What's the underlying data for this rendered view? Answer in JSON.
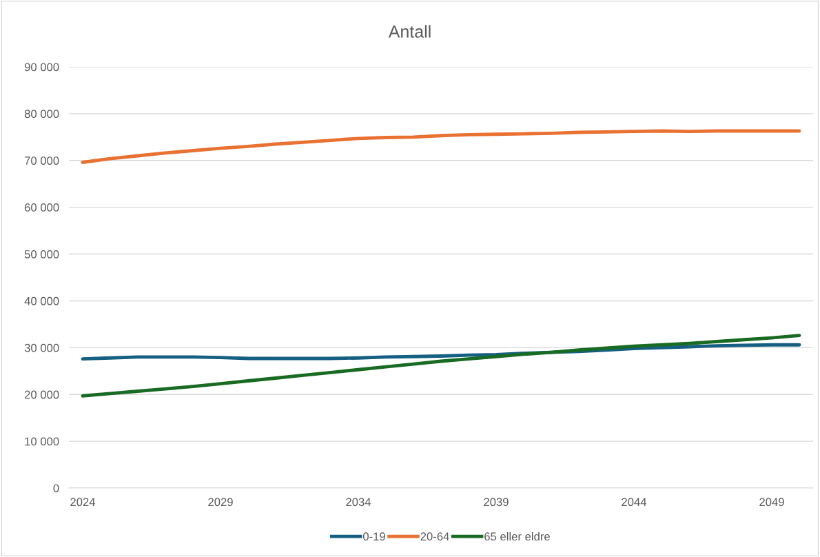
{
  "chart_data": {
    "type": "line",
    "title": "Antall",
    "categories": [
      "2024",
      null,
      null,
      null,
      null,
      "2029",
      null,
      null,
      null,
      null,
      "2034",
      null,
      null,
      null,
      null,
      "2039",
      null,
      null,
      null,
      null,
      "2044",
      null,
      null,
      null,
      null,
      "2049",
      null
    ],
    "series": [
      {
        "name": "0-19",
        "color": "#156082",
        "values": [
          27600,
          27800,
          28000,
          28000,
          28000,
          27900,
          27700,
          27700,
          27700,
          27700,
          27800,
          28000,
          28100,
          28200,
          28400,
          28500,
          28800,
          29000,
          29200,
          29500,
          29800,
          30000,
          30200,
          30400,
          30500,
          30600,
          30600
        ]
      },
      {
        "name": "20-64",
        "color": "#e97132",
        "values": [
          69600,
          70400,
          71000,
          71600,
          72100,
          72600,
          73000,
          73500,
          73900,
          74300,
          74700,
          74900,
          75000,
          75300,
          75500,
          75600,
          75700,
          75800,
          76000,
          76100,
          76200,
          76300,
          76200,
          76300,
          76300,
          76300,
          76300
        ]
      },
      {
        "name": "65 eller eldre",
        "color": "#196b24",
        "values": [
          19700,
          20200,
          20700,
          21200,
          21700,
          22300,
          22900,
          23500,
          24100,
          24700,
          25300,
          25900,
          26500,
          27100,
          27600,
          28100,
          28600,
          29000,
          29500,
          29900,
          30300,
          30600,
          30900,
          31300,
          31700,
          32100,
          32600
        ]
      }
    ],
    "ylim": [
      0,
      90000
    ],
    "yticks": [
      {
        "value": 0,
        "label": "0"
      },
      {
        "value": 10000,
        "label": "10 000"
      },
      {
        "value": 20000,
        "label": "20 000"
      },
      {
        "value": 30000,
        "label": "30 000"
      },
      {
        "value": 40000,
        "label": "40 000"
      },
      {
        "value": 50000,
        "label": "50 000"
      },
      {
        "value": 60000,
        "label": "60 000"
      },
      {
        "value": 70000,
        "label": "70 000"
      },
      {
        "value": 80000,
        "label": "80 000"
      },
      {
        "value": 90000,
        "label": "90 000"
      }
    ],
    "grid": "y",
    "legend": "bottom",
    "marker": "none",
    "line_style": "solid"
  }
}
